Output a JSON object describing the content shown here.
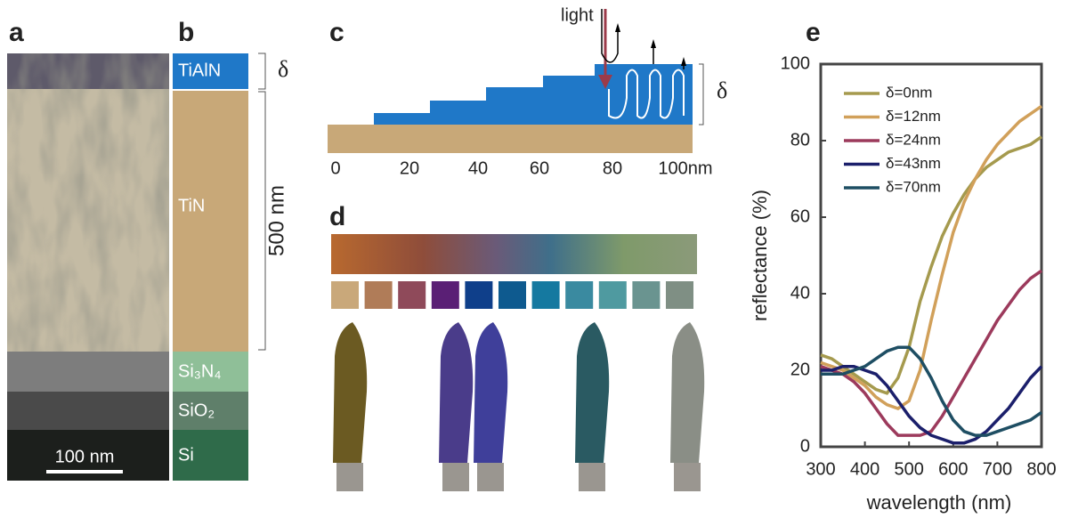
{
  "panels": {
    "a": {
      "label": "a",
      "scale_bar": "100 nm"
    },
    "b": {
      "label": "b",
      "layers": [
        "TiAlN",
        "TiN",
        "Si₃N₄",
        "SiO₂",
        "Si"
      ],
      "delta": "δ",
      "thickness": "500 nm"
    },
    "c": {
      "label": "c",
      "light": "light",
      "delta": "δ",
      "ticks": [
        "0",
        "20",
        "40",
        "60",
        "80",
        "100nm"
      ]
    },
    "d": {
      "label": "d"
    },
    "e": {
      "label": "e"
    }
  },
  "chart_data": {
    "type": "line",
    "xlabel": "wavelength (nm)",
    "ylabel": "reflectance (%)",
    "x": [
      300,
      325,
      350,
      375,
      400,
      425,
      450,
      475,
      500,
      525,
      550,
      575,
      600,
      625,
      650,
      675,
      700,
      725,
      750,
      775,
      800
    ],
    "xlim": [
      300,
      800
    ],
    "xticks": [
      300,
      400,
      500,
      600,
      700,
      800
    ],
    "ylim": [
      0,
      100
    ],
    "yticks": [
      0,
      20,
      40,
      60,
      80,
      100
    ],
    "series": [
      {
        "name": "δ=0nm",
        "color": "#a59a4e",
        "values": [
          24,
          23,
          21,
          19,
          17,
          15,
          14,
          18,
          26,
          38,
          47,
          55,
          61,
          66,
          70,
          73,
          75,
          77,
          78,
          79,
          81
        ]
      },
      {
        "name": "δ=12nm",
        "color": "#d1a05a",
        "values": [
          22,
          21,
          20,
          18,
          16,
          13,
          11,
          10,
          12,
          20,
          33,
          45,
          56,
          64,
          70,
          75,
          79,
          82,
          85,
          87,
          89
        ]
      },
      {
        "name": "δ=24nm",
        "color": "#9c3a5c",
        "values": [
          21,
          20,
          19,
          17,
          14,
          10,
          6,
          3,
          3,
          3,
          4,
          8,
          13,
          18,
          23,
          28,
          33,
          37,
          41,
          44,
          46
        ]
      },
      {
        "name": "δ=43nm",
        "color": "#1b1f6b",
        "values": [
          20,
          20,
          21,
          21,
          20,
          19,
          16,
          12,
          8,
          5,
          3,
          2,
          1,
          1,
          2,
          4,
          7,
          10,
          14,
          18,
          21
        ]
      },
      {
        "name": "δ=70nm",
        "color": "#1e4e63",
        "values": [
          19,
          19,
          19,
          20,
          21,
          23,
          25,
          26,
          26,
          23,
          18,
          12,
          7,
          4,
          3,
          3,
          4,
          5,
          6,
          7,
          9
        ]
      }
    ]
  }
}
